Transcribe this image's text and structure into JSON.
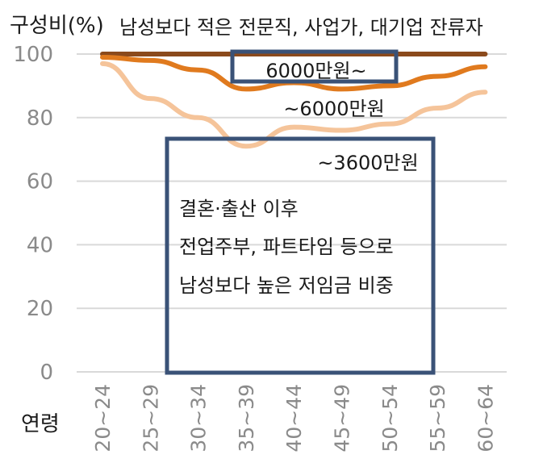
{
  "chart_data": {
    "type": "line",
    "ylabel": "구성비(%)",
    "xlabel": "연령",
    "ylim": [
      0,
      100
    ],
    "yticks": [
      0,
      20,
      40,
      60,
      80,
      100
    ],
    "grid": true,
    "categories": [
      "20~24",
      "25~29",
      "30~34",
      "35~39",
      "40~44",
      "45~49",
      "50~54",
      "55~59",
      "60~64"
    ],
    "series": [
      {
        "name": "6000만원~",
        "color": "#8b4a1c",
        "values": [
          100,
          100,
          100,
          100,
          100,
          100,
          100,
          100,
          100
        ]
      },
      {
        "name": "~6000만원",
        "color": "#e07a1e",
        "values": [
          99,
          98,
          95,
          89,
          91,
          89,
          90,
          93,
          96
        ]
      },
      {
        "name": "~3600만원",
        "color": "#f5c49a",
        "values": [
          97,
          86,
          80,
          71,
          77,
          76,
          78,
          83,
          88
        ]
      }
    ],
    "annotations": {
      "top_note": "남성보다 적은 전문직, 사업가, 대기업 잔류자",
      "box_lines": [
        "결혼·출산 이후",
        "전업주부, 파트타임 등으로",
        "남성보다 높은 저임금 비중"
      ]
    },
    "box_color": "#3a5277"
  }
}
